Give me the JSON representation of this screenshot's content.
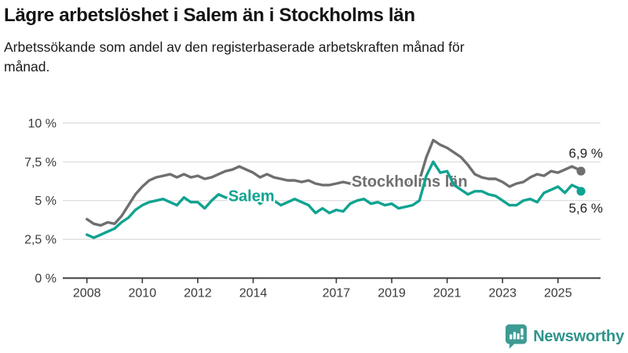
{
  "header": {
    "title": "Lägre arbetslöshet i Salem än i Stockholms län",
    "subtitle": "Arbetssökande som andel av den registerbaserade arbetskraften månad för månad."
  },
  "chart_data": {
    "type": "line",
    "title": "Lägre arbetslöshet i Salem än i Stockholms län",
    "xlabel": "",
    "ylabel": "",
    "ylim": [
      0,
      10
    ],
    "xlim": [
      2008,
      2026.5
    ],
    "grid": true,
    "legend_position": "inline-labels-on-lines",
    "y_ticks": [
      0,
      2.5,
      5,
      7.5,
      10
    ],
    "y_tick_labels": [
      "0 %",
      "2,5 %",
      "5 %",
      "7,5 %",
      "10 %"
    ],
    "x_ticks": [
      2008,
      2010,
      2012,
      2014,
      2017,
      2019,
      2021,
      2023,
      2025
    ],
    "x_tick_labels": [
      "2008",
      "2010",
      "2012",
      "2014",
      "2017",
      "2019",
      "2021",
      "2023",
      "2025"
    ],
    "axis_color": "#3c3c3c",
    "gridline_color": "#d9d9d9",
    "tick_label_color": "#3a3a3a",
    "end_label_color": "#222222",
    "x": [
      2008,
      2008.25,
      2008.5,
      2008.75,
      2009,
      2009.25,
      2009.5,
      2009.75,
      2010,
      2010.25,
      2010.5,
      2010.75,
      2011,
      2011.25,
      2011.5,
      2011.75,
      2012,
      2012.25,
      2012.5,
      2012.75,
      2013,
      2013.25,
      2013.5,
      2013.75,
      2014,
      2014.25,
      2014.5,
      2014.75,
      2015,
      2015.25,
      2015.5,
      2015.75,
      2016,
      2016.25,
      2016.5,
      2016.75,
      2017,
      2017.25,
      2017.5,
      2017.75,
      2018,
      2018.25,
      2018.5,
      2018.75,
      2019,
      2019.25,
      2019.5,
      2019.75,
      2020,
      2020.25,
      2020.5,
      2020.75,
      2021,
      2021.25,
      2021.5,
      2021.75,
      2022,
      2022.25,
      2022.5,
      2022.75,
      2023,
      2023.25,
      2023.5,
      2023.75,
      2024,
      2024.25,
      2024.5,
      2024.75,
      2025,
      2025.25,
      2025.5,
      2025.75,
      2025.83
    ],
    "series": [
      {
        "name": "Stockholms län",
        "slug": "stockholms-lan",
        "color": "#6f6f6f",
        "end_label": "6,9 %",
        "end_value": 6.9,
        "end_label_dy": -17,
        "inline_label_pos": {
          "x": 2017.55,
          "y": 5.9
        },
        "values": [
          3.8,
          3.5,
          3.4,
          3.6,
          3.5,
          4.0,
          4.7,
          5.4,
          5.9,
          6.3,
          6.5,
          6.6,
          6.7,
          6.5,
          6.7,
          6.5,
          6.6,
          6.4,
          6.5,
          6.7,
          6.9,
          7.0,
          7.2,
          7.0,
          6.8,
          6.5,
          6.7,
          6.5,
          6.4,
          6.3,
          6.3,
          6.2,
          6.3,
          6.1,
          6.0,
          6.0,
          6.1,
          6.2,
          6.1,
          6.1,
          6.2,
          6.1,
          6.1,
          6.0,
          6.0,
          6.1,
          6.1,
          6.2,
          6.3,
          7.8,
          8.9,
          8.6,
          8.4,
          8.1,
          7.8,
          7.3,
          6.7,
          6.5,
          6.4,
          6.4,
          6.2,
          5.9,
          6.1,
          6.2,
          6.5,
          6.7,
          6.6,
          6.9,
          6.8,
          7.0,
          7.2,
          7.0,
          6.9
        ]
      },
      {
        "name": "Salem",
        "slug": "salem",
        "color": "#10a391",
        "end_label": "5,6 %",
        "end_value": 5.6,
        "end_label_dy": 27,
        "inline_label_pos": {
          "x": 2013.1,
          "y": 4.95
        },
        "values": [
          2.8,
          2.6,
          2.8,
          3.0,
          3.2,
          3.6,
          3.9,
          4.4,
          4.7,
          4.9,
          5.0,
          5.1,
          4.9,
          4.7,
          5.2,
          4.9,
          4.9,
          4.5,
          5.0,
          5.4,
          5.2,
          5.1,
          5.3,
          5.0,
          5.3,
          4.8,
          5.1,
          5.0,
          4.7,
          4.9,
          5.1,
          4.9,
          4.7,
          4.2,
          4.5,
          4.2,
          4.4,
          4.3,
          4.8,
          5.0,
          5.1,
          4.8,
          4.9,
          4.7,
          4.8,
          4.5,
          4.6,
          4.7,
          5.0,
          6.6,
          7.5,
          6.8,
          6.9,
          6.0,
          5.7,
          5.4,
          5.6,
          5.6,
          5.4,
          5.3,
          5.0,
          4.7,
          4.7,
          5.0,
          5.1,
          4.9,
          5.5,
          5.7,
          5.9,
          5.5,
          6.0,
          5.8,
          5.6
        ]
      }
    ]
  },
  "footer": {
    "brand": "Newsworthy",
    "brand_color": "#2f948b",
    "badge_color": "#3d9b93",
    "badge_icon": "bar-chart-speech-bubble-icon"
  }
}
